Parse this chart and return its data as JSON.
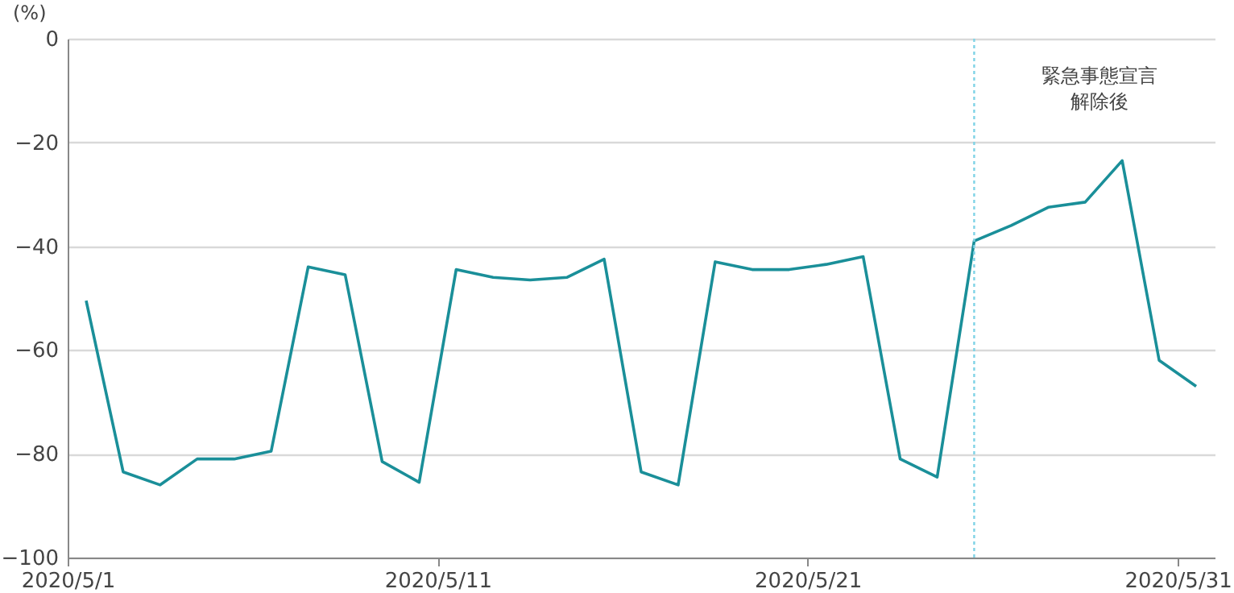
{
  "chart_data": {
    "type": "line",
    "ylabel": "(%)",
    "x": [
      "2020-05-01T12:00",
      "2020-05-02T12:00",
      "2020-05-03T12:00",
      "2020-05-04T12:00",
      "2020-05-05T12:00",
      "2020-05-06T12:00",
      "2020-05-07T12:00",
      "2020-05-08T12:00",
      "2020-05-09T12:00",
      "2020-05-10T12:00",
      "2020-05-11T12:00",
      "2020-05-12T12:00",
      "2020-05-13T12:00",
      "2020-05-14T12:00",
      "2020-05-15T12:00",
      "2020-05-16T12:00",
      "2020-05-17T12:00",
      "2020-05-18T12:00",
      "2020-05-19T12:00",
      "2020-05-20T12:00",
      "2020-05-21T12:00",
      "2020-05-22T12:00",
      "2020-05-23T12:00",
      "2020-05-24T12:00",
      "2020-05-25T12:00",
      "2020-05-26T12:00",
      "2020-05-27T12:00",
      "2020-05-28T12:00",
      "2020-05-29T12:00",
      "2020-05-30T12:00",
      "2020-05-31T12:00"
    ],
    "series": [
      {
        "color": "#1a8f99",
        "values": [
          -50.5,
          -83.5,
          -86,
          -81,
          -81,
          -79.5,
          -44,
          -45.5,
          -81.5,
          -85.5,
          -44.5,
          -46,
          -46.5,
          -46,
          -42.5,
          -83.5,
          -86,
          -43,
          -44.5,
          -44.5,
          -43.5,
          -42,
          -81,
          -84.5,
          -39,
          -36,
          -32.5,
          -31.5,
          -23.5,
          -62,
          -67
        ]
      }
    ],
    "xlim": [
      "2020-05-01",
      "2020-06-01"
    ],
    "xticks": [
      {
        "value": "2020-05-01",
        "label": "2020/5/1"
      },
      {
        "value": "2020-05-11",
        "label": "2020/5/11"
      },
      {
        "value": "2020-05-21",
        "label": "2020/5/21"
      },
      {
        "value": "2020-05-31",
        "label": "2020/5/31"
      }
    ],
    "ylim": [
      -100,
      0
    ],
    "yticks": [
      {
        "value": -100,
        "label": "−100"
      },
      {
        "value": -80,
        "label": "−80"
      },
      {
        "value": -60,
        "label": "−60"
      },
      {
        "value": -40,
        "label": "−40"
      },
      {
        "value": -20,
        "label": "−20"
      },
      0
    ],
    "grid": "y",
    "line_style": "solid",
    "ref_lines": [
      {
        "axis": "x",
        "value": "2020-05-25T12:00",
        "color": "#7fd3e6",
        "line_style": "dotted"
      }
    ],
    "annotations": [
      "緊急事態宣言解除後"
    ]
  }
}
